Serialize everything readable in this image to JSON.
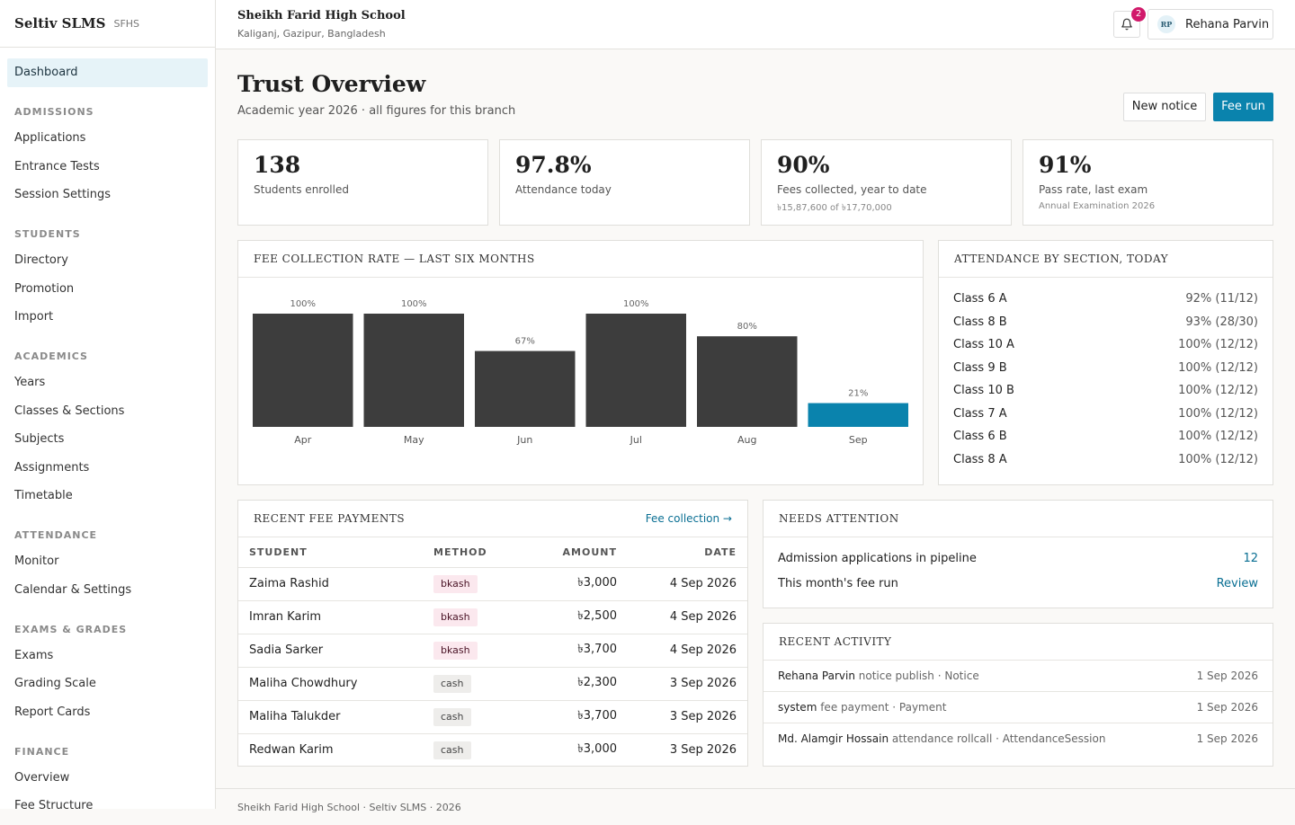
{
  "brand": {
    "name": "Seltiv SLMS",
    "code": "SFHS"
  },
  "school": {
    "name": "Sheikh Farid High School",
    "location": "Kaliganj, Gazipur, Bangladesh"
  },
  "user": {
    "name": "Rehana Parvin",
    "initials": "RP",
    "notifications": "2"
  },
  "sidebar": {
    "dashboard": "Dashboard",
    "sections": [
      {
        "title": "ADMISSIONS",
        "items": [
          "Applications",
          "Entrance Tests",
          "Session Settings"
        ]
      },
      {
        "title": "STUDENTS",
        "items": [
          "Directory",
          "Promotion",
          "Import"
        ]
      },
      {
        "title": "ACADEMICS",
        "items": [
          "Years",
          "Classes & Sections",
          "Subjects",
          "Assignments",
          "Timetable"
        ]
      },
      {
        "title": "ATTENDANCE",
        "items": [
          "Monitor",
          "Calendar & Settings"
        ]
      },
      {
        "title": "EXAMS & GRADES",
        "items": [
          "Exams",
          "Grading Scale",
          "Report Cards"
        ]
      },
      {
        "title": "FINANCE",
        "items": [
          "Overview",
          "Fee Structure"
        ]
      }
    ]
  },
  "page": {
    "title": "Trust Overview",
    "subtitle": "Academic year 2026 · all figures for this branch",
    "new_notice": "New notice",
    "fee_run": "Fee run"
  },
  "stats": [
    {
      "value": "138",
      "label": "Students enrolled",
      "note": ""
    },
    {
      "value": "97.8%",
      "label": "Attendance today",
      "note": ""
    },
    {
      "value": "90%",
      "label": "Fees collected, year to date",
      "note": "৳15,87,600 of ৳17,70,000"
    },
    {
      "value": "91%",
      "label": "Pass rate, last exam",
      "note": "Annual Examination 2026"
    }
  ],
  "chart_data": {
    "type": "bar",
    "title": "FEE COLLECTION RATE — LAST SIX MONTHS",
    "categories": [
      "Apr",
      "May",
      "Jun",
      "Jul",
      "Aug",
      "Sep"
    ],
    "values": [
      100,
      100,
      67,
      100,
      80,
      21
    ],
    "data_labels": [
      "100%",
      "100%",
      "67%",
      "100%",
      "80%",
      "21%"
    ],
    "ylim": [
      0,
      100
    ],
    "grid": false,
    "colors": {
      "default": "#3d3d3d",
      "highlight": "#0a83ad"
    },
    "highlight_index": 5
  },
  "attendance": {
    "title": "ATTENDANCE BY SECTION, TODAY",
    "rows": [
      {
        "section": "Class 6 A",
        "value": "92% (11/12)"
      },
      {
        "section": "Class 8 B",
        "value": "93% (28/30)"
      },
      {
        "section": "Class 10 A",
        "value": "100% (12/12)"
      },
      {
        "section": "Class 9 B",
        "value": "100% (12/12)"
      },
      {
        "section": "Class 10 B",
        "value": "100% (12/12)"
      },
      {
        "section": "Class 7 A",
        "value": "100% (12/12)"
      },
      {
        "section": "Class 6 B",
        "value": "100% (12/12)"
      },
      {
        "section": "Class 8 A",
        "value": "100% (12/12)"
      }
    ]
  },
  "payments": {
    "title": "RECENT FEE PAYMENTS",
    "link": "Fee collection →",
    "columns": [
      "STUDENT",
      "METHOD",
      "AMOUNT",
      "DATE"
    ],
    "rows": [
      {
        "student": "Zaima Rashid",
        "method": "bkash",
        "amount": "৳3,000",
        "date": "4 Sep 2026"
      },
      {
        "student": "Imran Karim",
        "method": "bkash",
        "amount": "৳2,500",
        "date": "4 Sep 2026"
      },
      {
        "student": "Sadia Sarker",
        "method": "bkash",
        "amount": "৳3,700",
        "date": "4 Sep 2026"
      },
      {
        "student": "Maliha Chowdhury",
        "method": "cash",
        "amount": "৳2,300",
        "date": "3 Sep 2026"
      },
      {
        "student": "Maliha Talukder",
        "method": "cash",
        "amount": "৳3,700",
        "date": "3 Sep 2026"
      },
      {
        "student": "Redwan Karim",
        "method": "cash",
        "amount": "৳3,000",
        "date": "3 Sep 2026"
      }
    ]
  },
  "attention": {
    "title": "NEEDS ATTENTION",
    "rows": [
      {
        "label": "Admission applications in pipeline",
        "value": "12"
      },
      {
        "label": "This month's fee run",
        "value": "Review"
      }
    ]
  },
  "activity": {
    "title": "RECENT ACTIVITY",
    "rows": [
      {
        "actor": "Rehana Parvin",
        "desc": " notice publish · Notice",
        "date": "1 Sep 2026"
      },
      {
        "actor": "system",
        "desc": " fee payment · Payment",
        "date": "1 Sep 2026"
      },
      {
        "actor": "Md. Alamgir Hossain",
        "desc": " attendance rollcall · AttendanceSession",
        "date": "1 Sep 2026"
      }
    ]
  },
  "footer": "Sheikh Farid High School · Seltiv SLMS · 2026"
}
